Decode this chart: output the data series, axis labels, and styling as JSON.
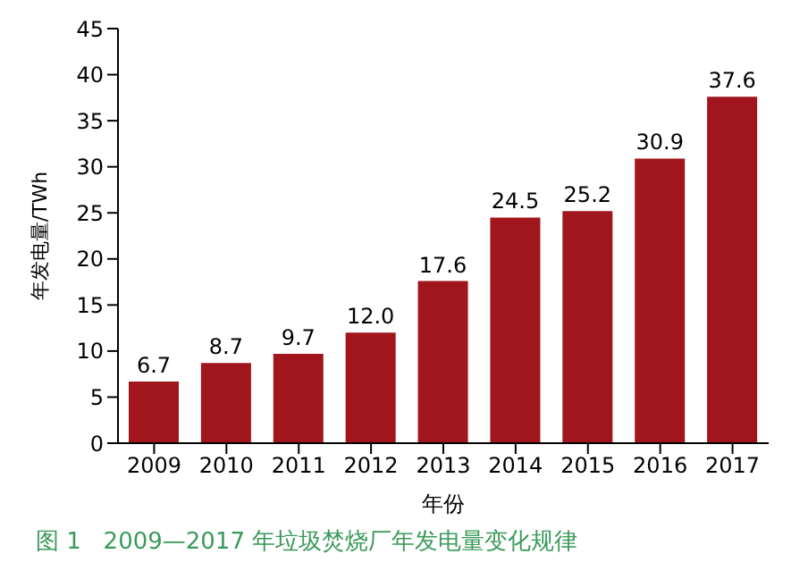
{
  "chart_data": {
    "type": "bar",
    "title": "图 1   2009—2017 年垃圾焚烧厂年发电量变化规律",
    "xlabel": "年份",
    "ylabel": "年发电量/TWh",
    "categories": [
      "2009",
      "2010",
      "2011",
      "2012",
      "2013",
      "2014",
      "2015",
      "2016",
      "2017"
    ],
    "values": [
      6.7,
      8.7,
      9.7,
      12.0,
      17.6,
      24.5,
      25.2,
      30.9,
      37.6
    ],
    "value_labels": [
      "6.7",
      "8.7",
      "9.7",
      "12.0",
      "17.6",
      "24.5",
      "25.2",
      "30.9",
      "37.6"
    ],
    "color": "#a0161c",
    "ylim": [
      0,
      45
    ],
    "yticks": [
      0,
      5,
      10,
      15,
      20,
      25,
      30,
      35,
      40,
      45
    ],
    "grid": false
  }
}
